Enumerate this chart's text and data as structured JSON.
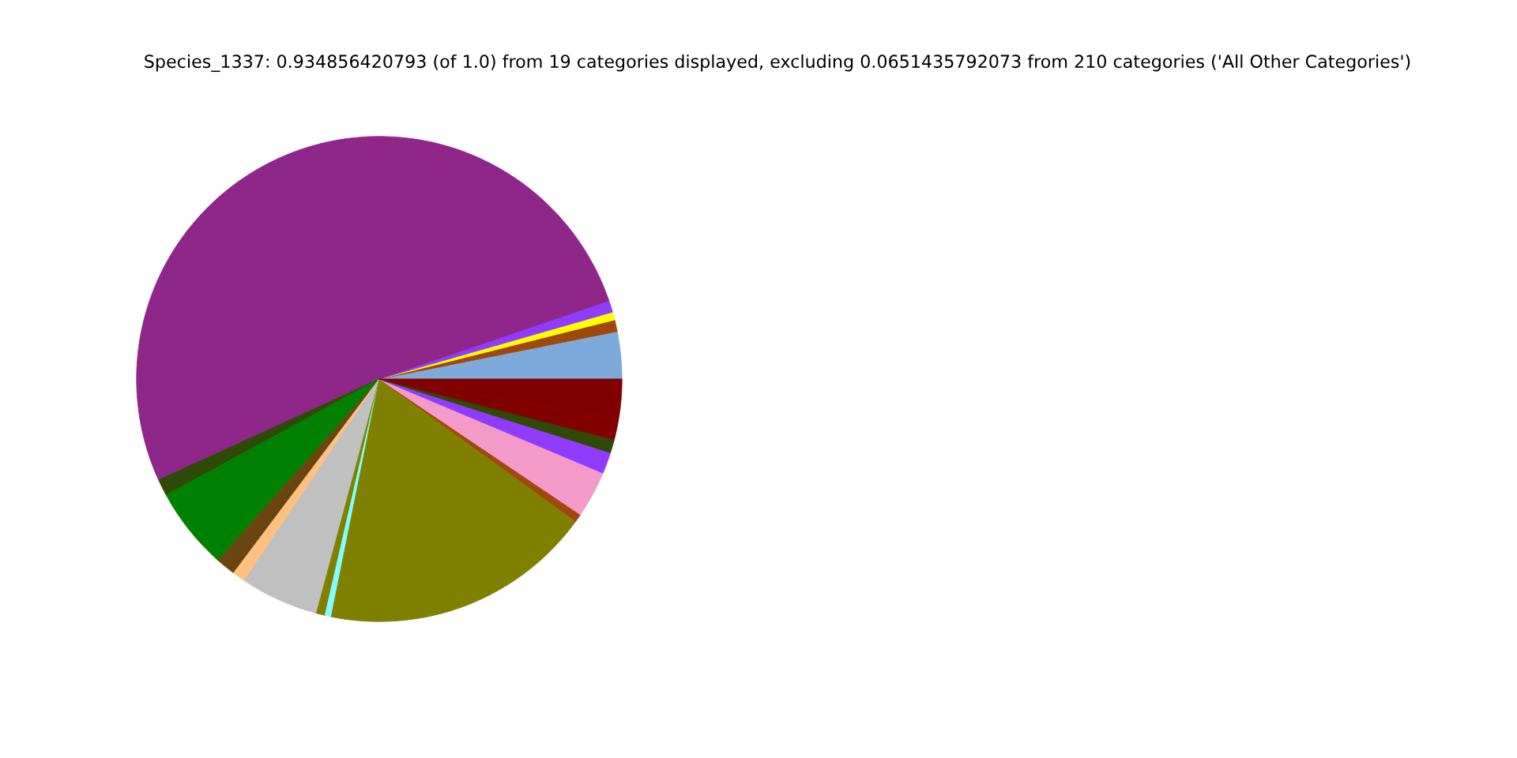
{
  "chart_data": {
    "type": "pie",
    "title": "Species_1337: 0.934856420793 (of 1.0) from 19 categories displayed, excluding 0.0651435792073 from 210 categories ('All Other Categories')",
    "categories": [
      null,
      null,
      null,
      null,
      null,
      null,
      null,
      null,
      null,
      null,
      null,
      null,
      null,
      null,
      null,
      null,
      null,
      null,
      null
    ],
    "values": [
      3.14,
      0.78,
      0.53,
      0.78,
      51.6,
      1.11,
      5.5,
      1.31,
      0.86,
      5.22,
      0.58,
      0.42,
      18.19,
      0.53,
      3.11,
      1.42,
      0.89,
      1.36,
      2.67
    ],
    "colors": [
      "#7eaadb",
      "#a0480c",
      "#ffff00",
      "#8f3cff",
      "#8f278a",
      "#2f4a06",
      "#008000",
      "#6b4510",
      "#ffc080",
      "#c0c0c0",
      "#808000",
      "#80ffff",
      "#808000",
      "#a0480c",
      "#f49ac8",
      "#8f3cff",
      "#2f4a06",
      "#800000",
      "#800000"
    ],
    "legend": false
  }
}
